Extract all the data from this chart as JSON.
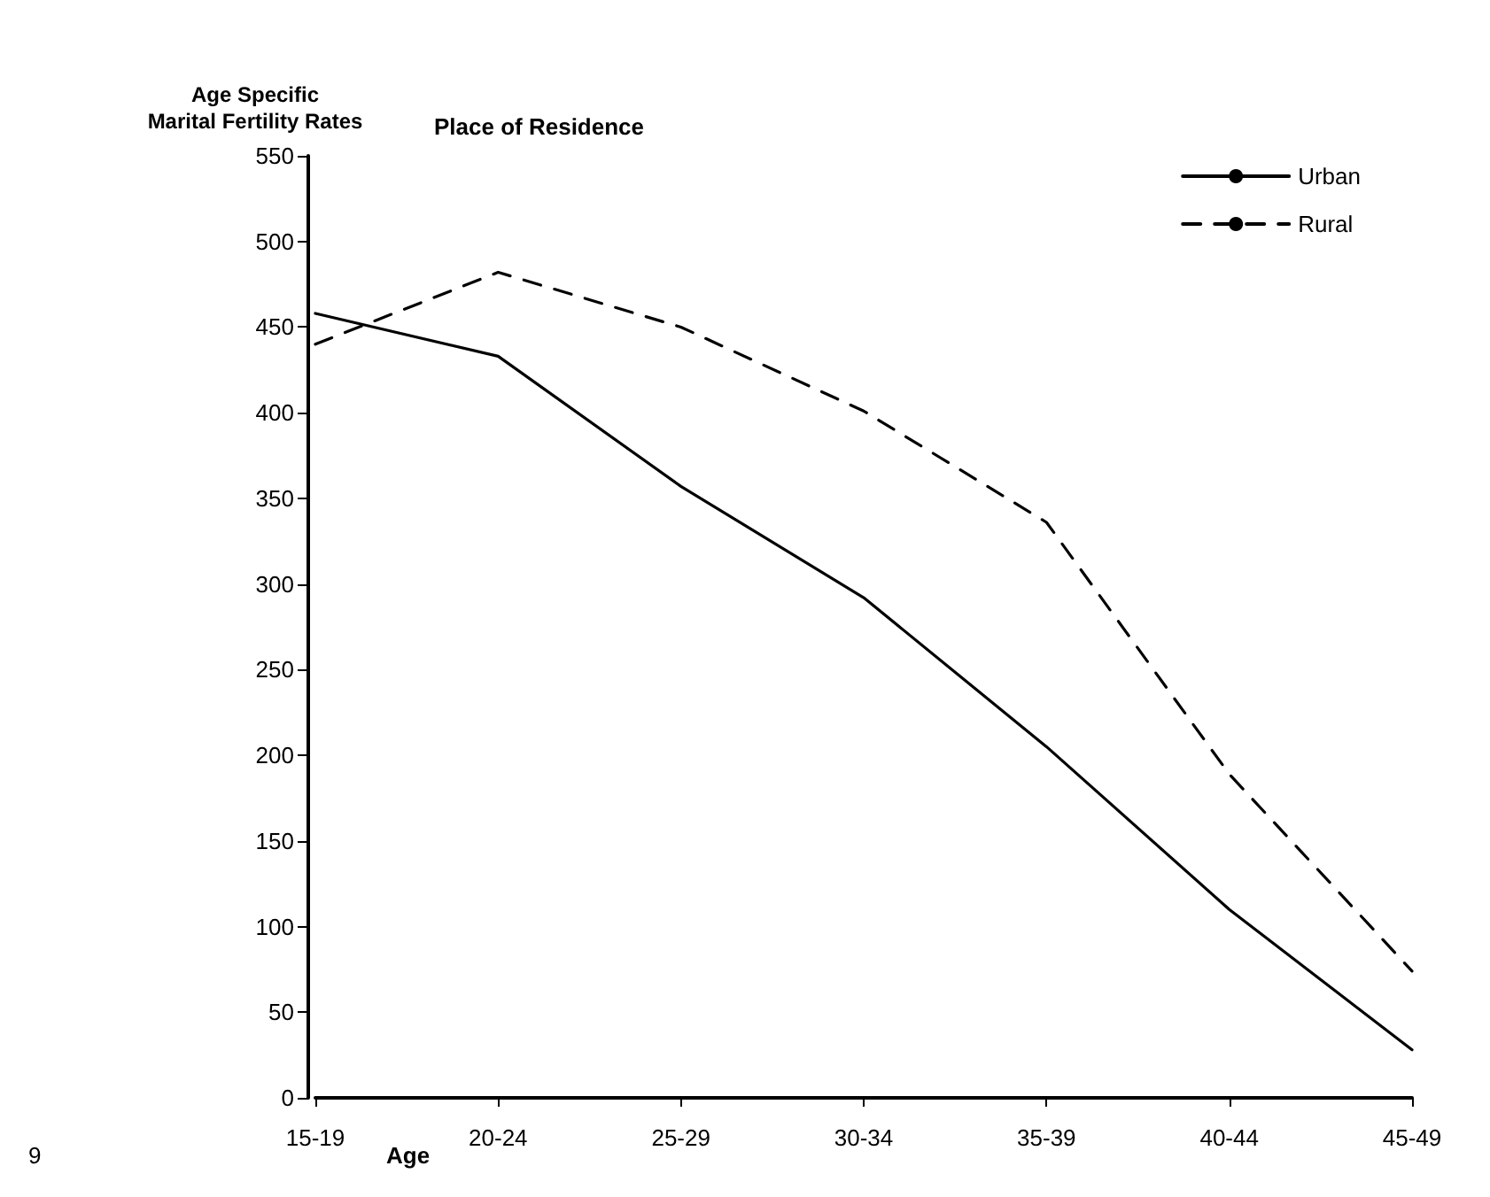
{
  "chart_data": {
    "type": "line",
    "title": "Place of Residence",
    "ylabel": "Age Specific\nMarital Fertility Rates",
    "xlabel": "Age",
    "categories": [
      "15-19",
      "20-24",
      "25-29",
      "30-34",
      "35-39",
      "40-44",
      "45-49"
    ],
    "series": [
      {
        "name": "Urban",
        "color": "#000000",
        "line_style": "solid",
        "values": [
          458,
          433,
          357,
          292,
          205,
          110,
          28
        ]
      },
      {
        "name": "Rural",
        "color": "#000000",
        "line_style": "dashed",
        "values": [
          440,
          482,
          450,
          401,
          336,
          189,
          74
        ]
      }
    ],
    "ylim": [
      0,
      550
    ],
    "yticks": [
      0,
      50,
      100,
      150,
      200,
      250,
      300,
      350,
      400,
      450,
      500,
      550
    ],
    "legend": "top right",
    "marker": "none",
    "grid": false,
    "annotations": [
      "9"
    ]
  }
}
